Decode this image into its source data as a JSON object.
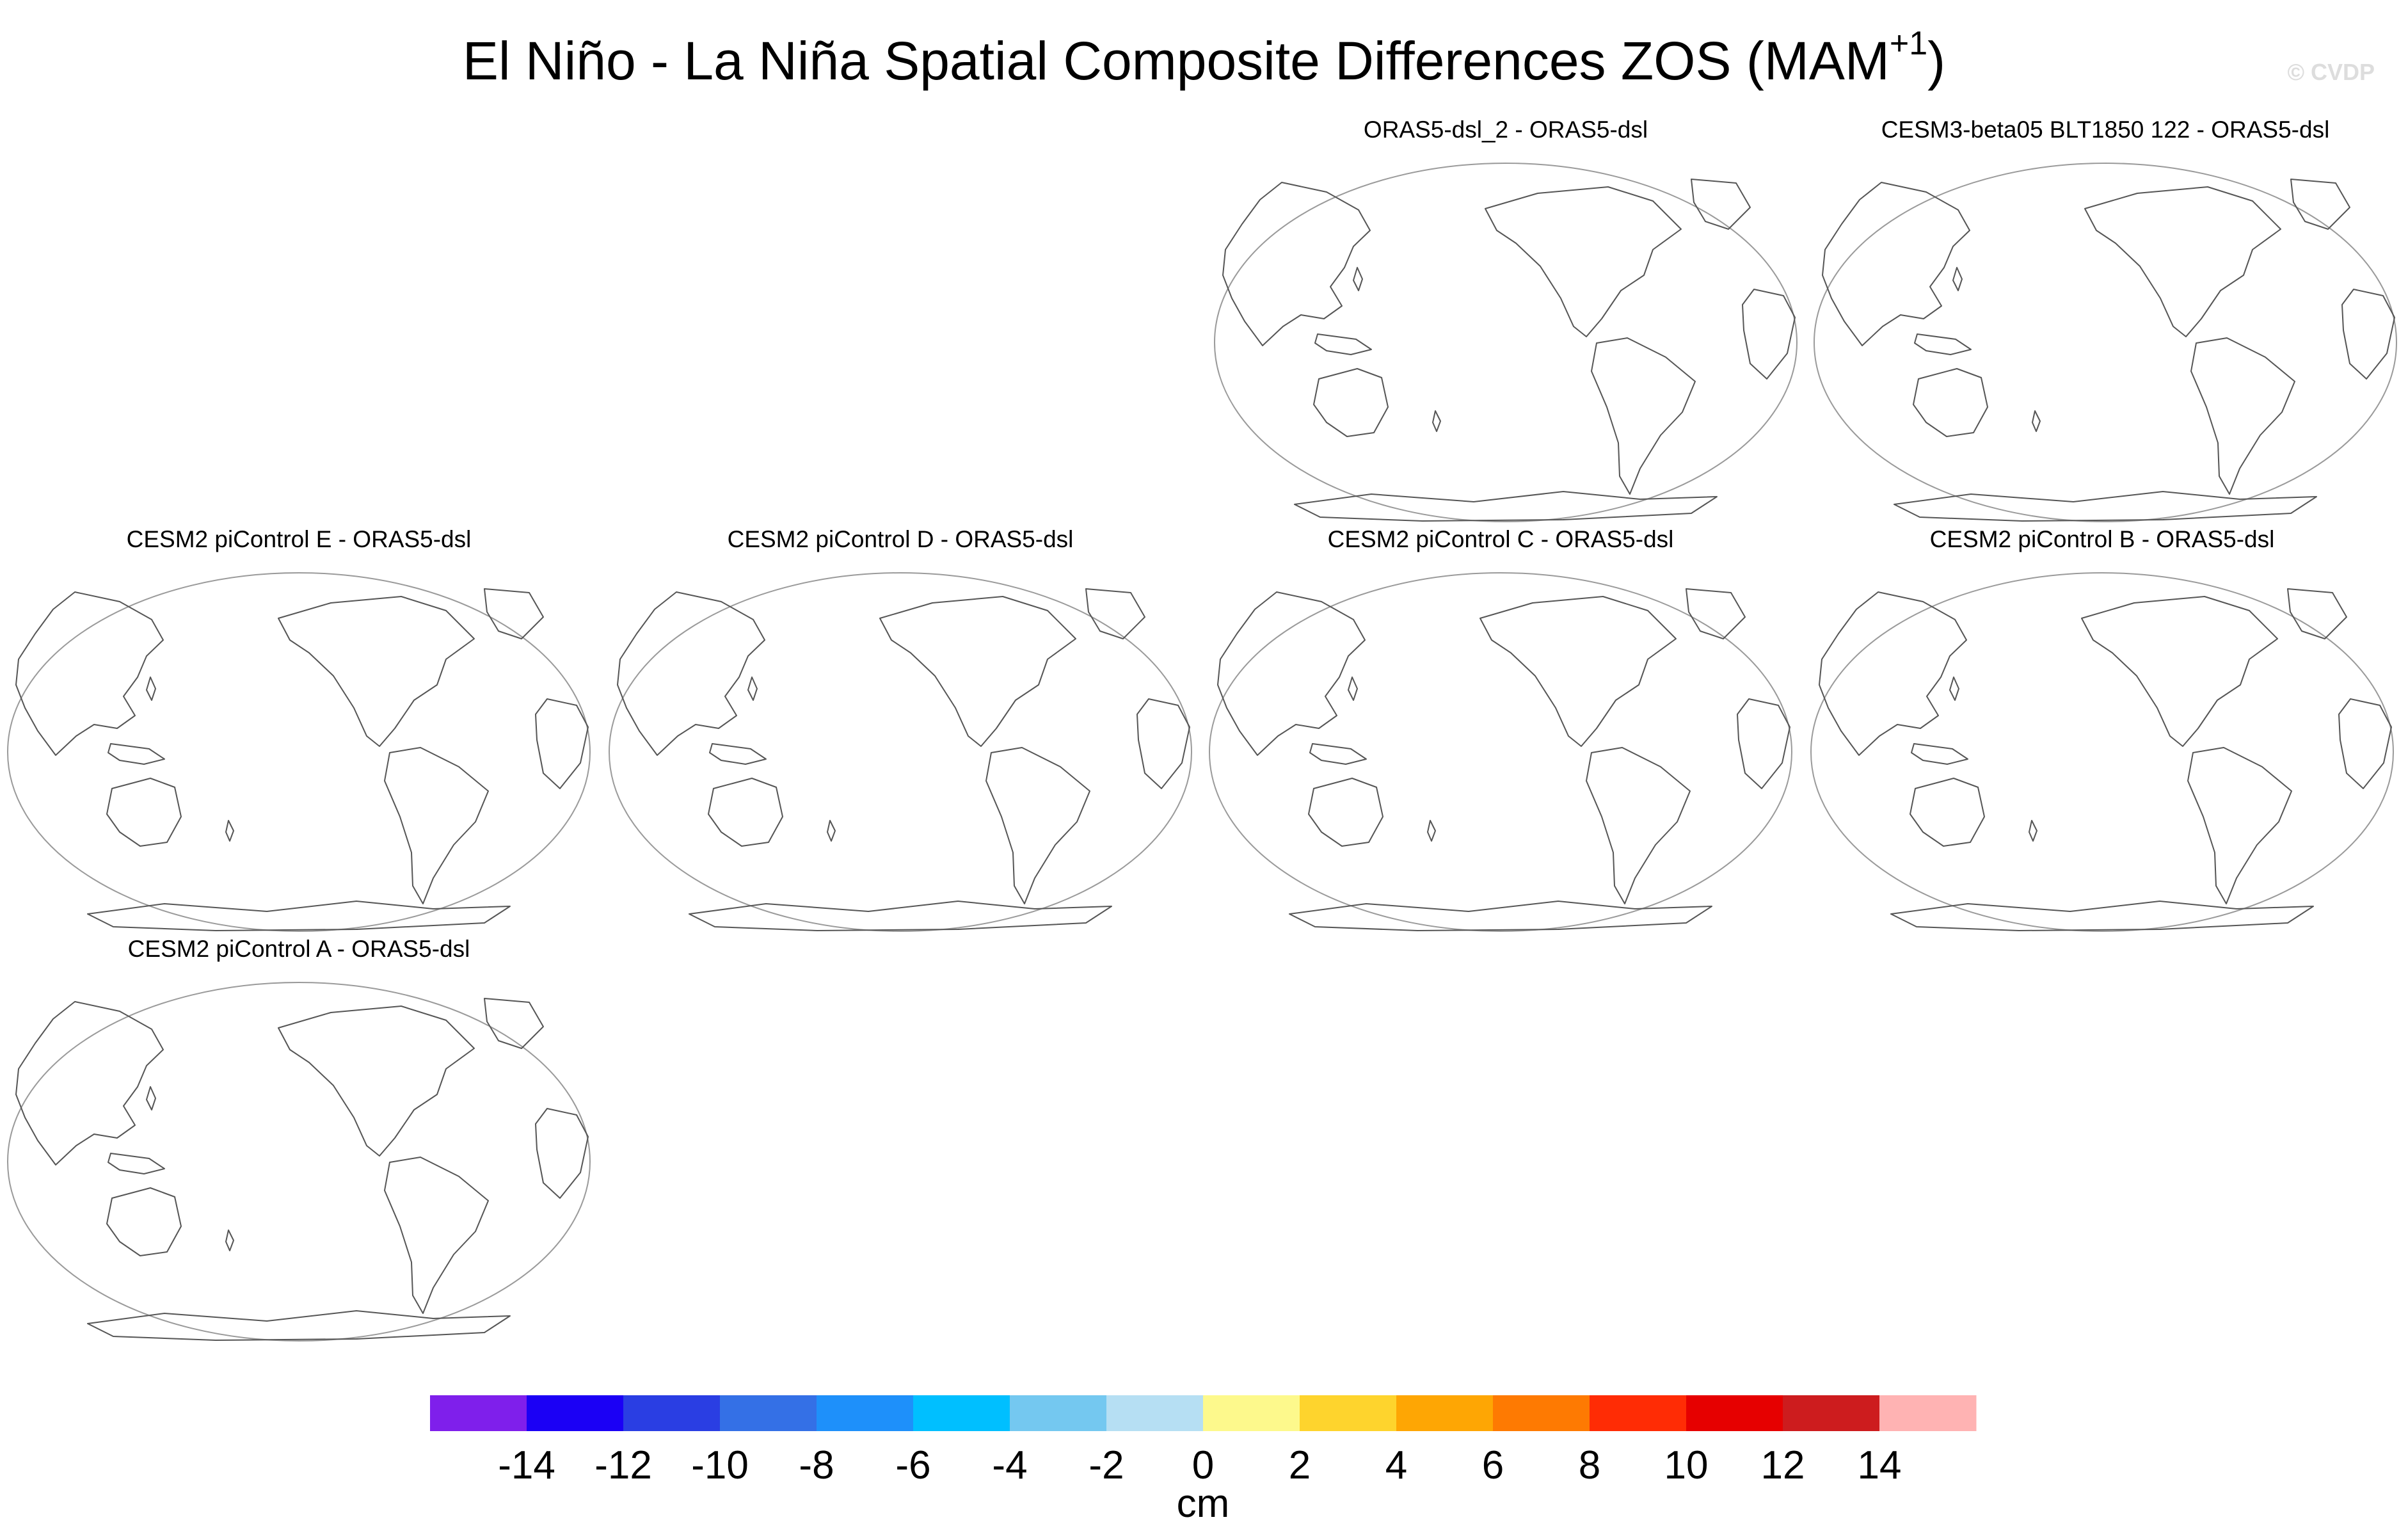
{
  "figure": {
    "title": "El Niño - La Niña Spatial Composite Differences ZOS (MAM",
    "title_superscript": "+1",
    "title_end": ")",
    "watermark": "© CVDP"
  },
  "chart_data": {
    "type": "map-panels",
    "title": "El Niño - La Niña Spatial Composite Differences ZOS (MAM+1)",
    "panels": [
      {
        "label": "ORAS5-dsl_2 - ORAS5-dsl",
        "values": "blank"
      },
      {
        "label": "CESM3-beta05 BLT1850 122 - ORAS5-dsl",
        "values": "blank"
      },
      {
        "label": "CESM2 piControl E - ORAS5-dsl",
        "values": "blank"
      },
      {
        "label": "CESM2 piControl D - ORAS5-dsl",
        "values": "blank"
      },
      {
        "label": "CESM2 piControl C - ORAS5-dsl",
        "values": "blank"
      },
      {
        "label": "CESM2 piControl B - ORAS5-dsl",
        "values": "blank"
      },
      {
        "label": "CESM2 piControl A - ORAS5-dsl",
        "values": "blank"
      }
    ],
    "colorbar": {
      "units": "cm",
      "ticks": [
        "-14",
        "-12",
        "-10",
        "-8",
        "-6",
        "-4",
        "-2",
        "0",
        "2",
        "4",
        "6",
        "8",
        "10",
        "12",
        "14"
      ],
      "colors": [
        "#7f1feb",
        "#1b00f5",
        "#2a3ee3",
        "#3470e6",
        "#1e90fa",
        "#00bfff",
        "#74c8f0",
        "#b6dff3",
        "#fdf98c",
        "#fed42d",
        "#fea604",
        "#fe7a02",
        "#ff2c05",
        "#e60000",
        "#cd1c1e",
        "#ffb3b3"
      ]
    }
  }
}
